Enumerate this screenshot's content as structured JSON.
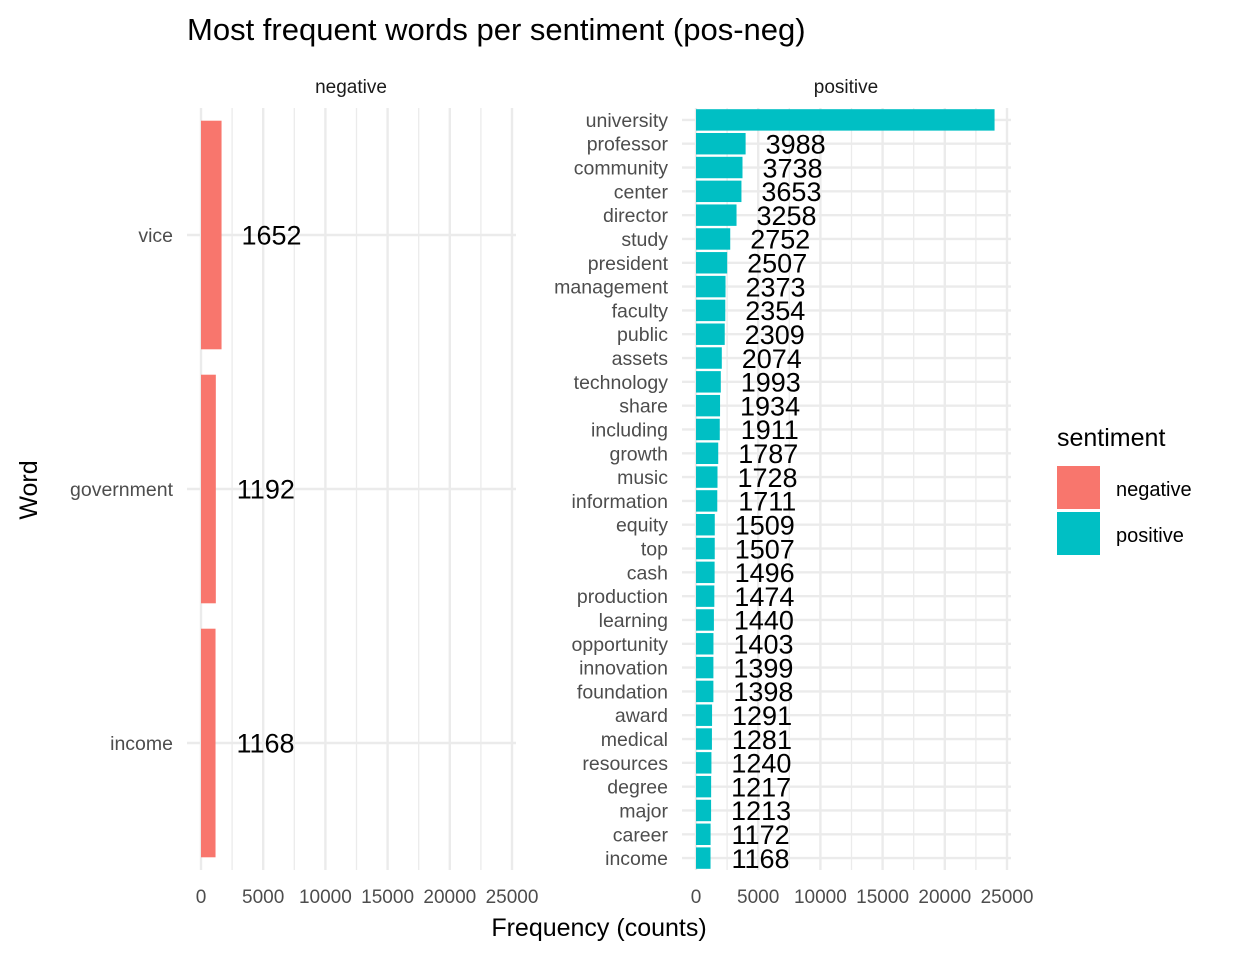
{
  "chart_data": {
    "type": "bar",
    "orientation": "horizontal",
    "title": "Most frequent words per sentiment (pos-neg)",
    "xlabel": "Frequency (counts)",
    "ylabel": "Word",
    "xlim": [
      0,
      25000
    ],
    "x_ticks": [
      0,
      5000,
      10000,
      15000,
      20000,
      25000
    ],
    "x_tick_labels": [
      "0",
      "5000",
      "10000",
      "15000",
      "20000",
      "25000"
    ],
    "grid": true,
    "legend": {
      "title": "sentiment",
      "position": "right",
      "entries": [
        {
          "label": "negative",
          "color": "#F8766D"
        },
        {
          "label": "positive",
          "color": "#00BFC4"
        }
      ]
    },
    "panels": [
      {
        "name": "negative",
        "color": "#F8766D",
        "categories": [
          "vice",
          "government",
          "income"
        ],
        "values": [
          1652,
          1192,
          1168
        ],
        "labels": [
          "1652",
          "1192",
          "1168"
        ]
      },
      {
        "name": "positive",
        "color": "#00BFC4",
        "categories": [
          "university",
          "professor",
          "community",
          "center",
          "director",
          "study",
          "president",
          "management",
          "faculty",
          "public",
          "assets",
          "technology",
          "share",
          "including",
          "growth",
          "music",
          "information",
          "equity",
          "top",
          "cash",
          "production",
          "learning",
          "opportunity",
          "innovation",
          "foundation",
          "award",
          "medical",
          "resources",
          "degree",
          "major",
          "career",
          "income"
        ],
        "values": [
          24000,
          3988,
          3738,
          3653,
          3258,
          2752,
          2507,
          2373,
          2354,
          2309,
          2074,
          1993,
          1934,
          1911,
          1787,
          1728,
          1711,
          1509,
          1507,
          1496,
          1474,
          1440,
          1403,
          1399,
          1398,
          1291,
          1281,
          1240,
          1217,
          1213,
          1172,
          1168
        ],
        "labels": [
          "",
          "3988",
          "3738",
          "3653",
          "3258",
          "2752",
          "2507",
          "2373",
          "2354",
          "2309",
          "2074",
          "1993",
          "1934",
          "1911",
          "1787",
          "1728",
          "1711",
          "1509",
          "1507",
          "1496",
          "1474",
          "1440",
          "1403",
          "1399",
          "1398",
          "1291",
          "1281",
          "1240",
          "1217",
          "1213",
          "1172",
          "1168"
        ]
      }
    ]
  }
}
